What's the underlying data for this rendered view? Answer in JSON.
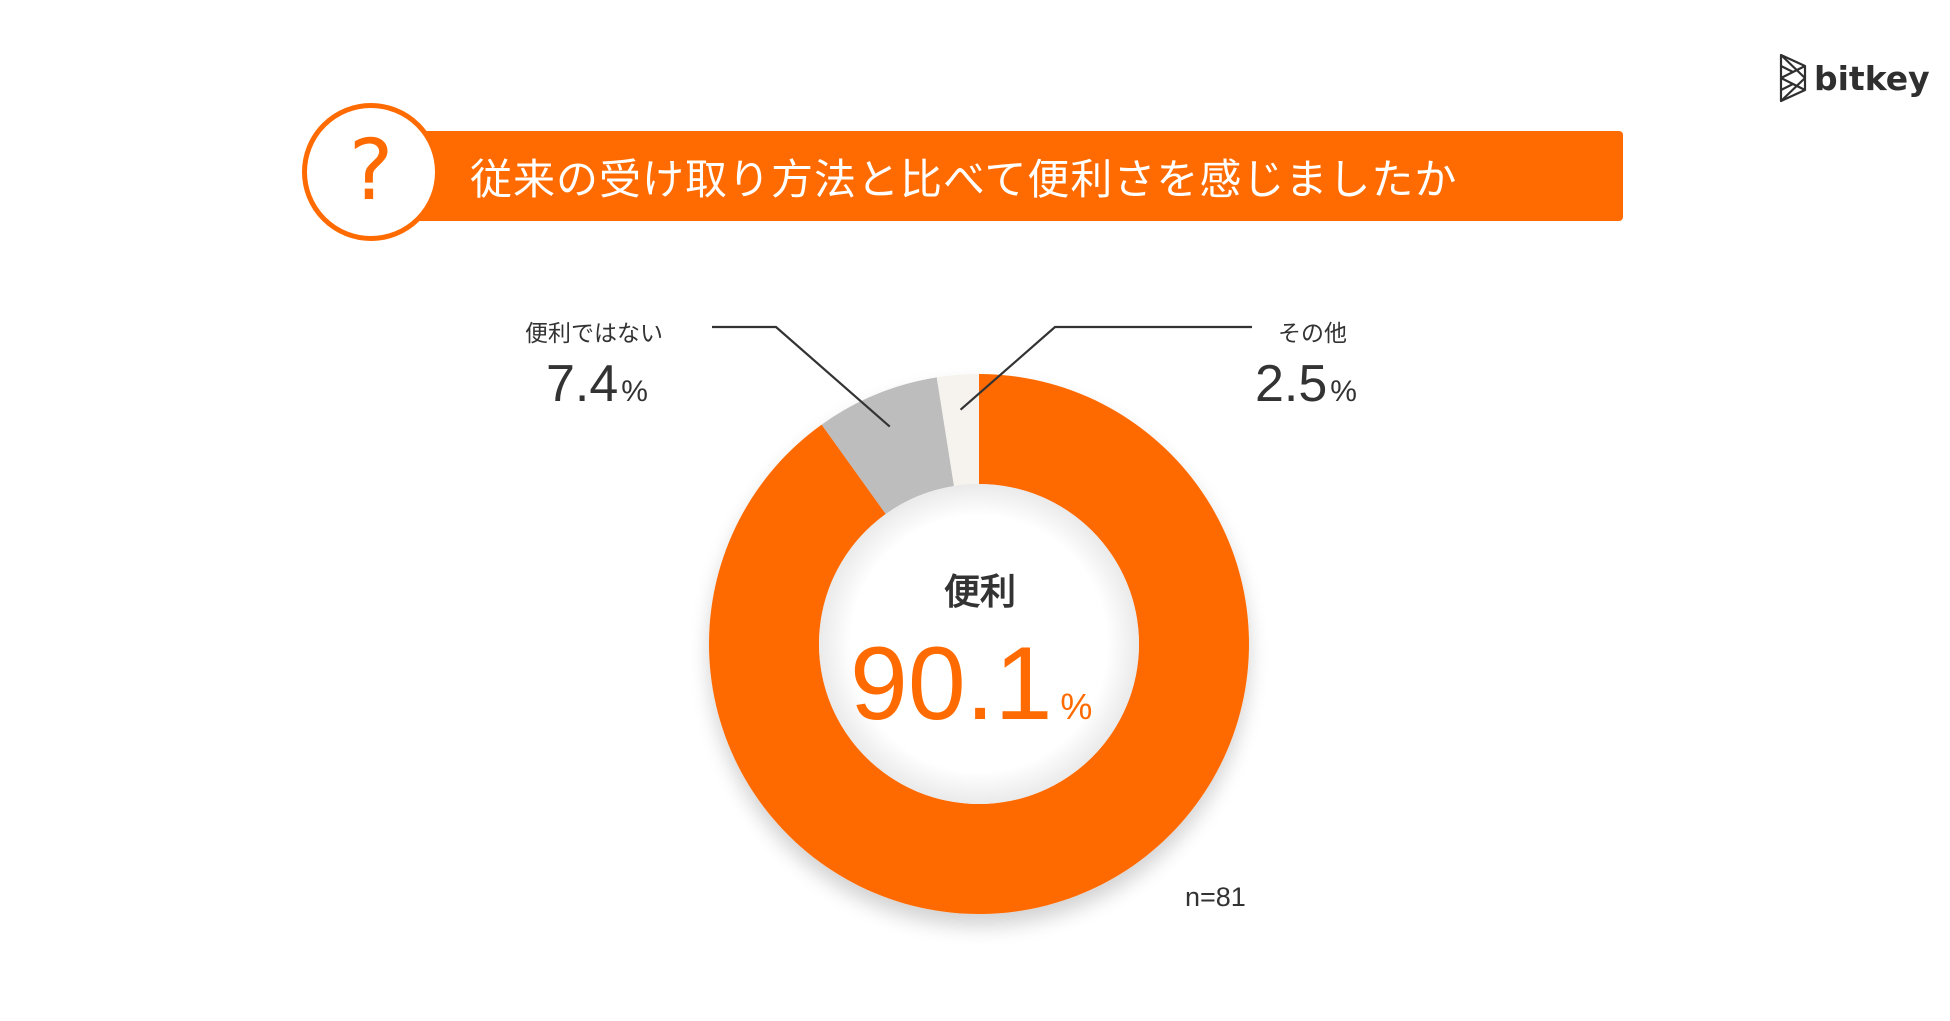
{
  "brand": {
    "name": "bitkey"
  },
  "question": {
    "mark": "?",
    "text": "従来の受け取り方法と比べて便利さを感じましたか"
  },
  "colors": {
    "accent": "#FF6B00",
    "secondary": "#BDBDBD",
    "other": "#F6F3EE",
    "text": "#333333"
  },
  "sample": "n=81",
  "chart_data": {
    "type": "pie",
    "style": "donut",
    "slices": [
      {
        "label": "便利",
        "value": 90.1,
        "display": "90.1",
        "unit": "%",
        "color": "#FF6B00"
      },
      {
        "label": "便利ではない",
        "value": 7.4,
        "display": "7.4",
        "unit": "%",
        "color": "#BDBDBD"
      },
      {
        "label": "その他",
        "value": 2.5,
        "display": "2.5",
        "unit": "%",
        "color": "#F6F3EE"
      }
    ],
    "start": "top",
    "direction": "clockwise",
    "legend": "callout-labels"
  }
}
